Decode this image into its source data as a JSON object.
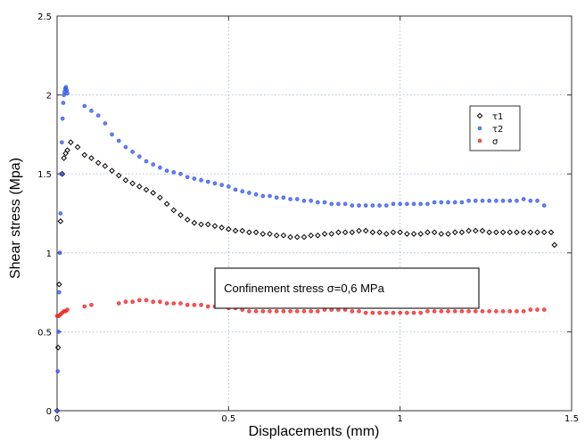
{
  "chart_data": {
    "type": "scatter",
    "xlabel": "Displacements (mm)",
    "ylabel": "Shear stress (Mpa)",
    "xlim": [
      0,
      1.5
    ],
    "ylim": [
      0,
      2.5
    ],
    "x_ticks": [
      "0",
      "0.5",
      "1",
      "1.5"
    ],
    "y_ticks": [
      "0",
      "0.5",
      "1",
      "1.5",
      "2",
      "2.5"
    ],
    "grid": true,
    "legend_position": "top-right",
    "annotation": "Confinement stress σ=0,6 MPa",
    "colors": {
      "tau1": "#000000",
      "tau2": "#3355ee",
      "sigma": "#ee2222"
    },
    "series": [
      {
        "name": "τ1",
        "marker": "diamond",
        "x": [
          0.0,
          0.003,
          0.006,
          0.01,
          0.015,
          0.02,
          0.025,
          0.03,
          0.04,
          0.06,
          0.08,
          0.1,
          0.12,
          0.14,
          0.16,
          0.18,
          0.2,
          0.22,
          0.24,
          0.26,
          0.28,
          0.3,
          0.32,
          0.34,
          0.36,
          0.38,
          0.4,
          0.42,
          0.44,
          0.46,
          0.48,
          0.5,
          0.52,
          0.54,
          0.56,
          0.58,
          0.6,
          0.62,
          0.64,
          0.66,
          0.68,
          0.7,
          0.72,
          0.74,
          0.76,
          0.78,
          0.8,
          0.82,
          0.84,
          0.86,
          0.88,
          0.9,
          0.92,
          0.94,
          0.96,
          0.98,
          1.0,
          1.02,
          1.04,
          1.06,
          1.08,
          1.1,
          1.12,
          1.14,
          1.16,
          1.18,
          1.2,
          1.22,
          1.24,
          1.26,
          1.28,
          1.3,
          1.32,
          1.34,
          1.36,
          1.38,
          1.4,
          1.42,
          1.44,
          1.45
        ],
        "y": [
          0.0,
          0.4,
          0.8,
          1.2,
          1.5,
          1.6,
          1.63,
          1.65,
          1.7,
          1.67,
          1.62,
          1.6,
          1.57,
          1.55,
          1.52,
          1.49,
          1.46,
          1.44,
          1.42,
          1.4,
          1.38,
          1.35,
          1.31,
          1.27,
          1.24,
          1.21,
          1.19,
          1.18,
          1.18,
          1.17,
          1.16,
          1.15,
          1.14,
          1.14,
          1.13,
          1.13,
          1.12,
          1.12,
          1.11,
          1.11,
          1.1,
          1.1,
          1.1,
          1.11,
          1.11,
          1.12,
          1.12,
          1.13,
          1.13,
          1.13,
          1.14,
          1.14,
          1.13,
          1.13,
          1.12,
          1.13,
          1.13,
          1.12,
          1.12,
          1.12,
          1.13,
          1.13,
          1.12,
          1.12,
          1.13,
          1.13,
          1.14,
          1.14,
          1.14,
          1.13,
          1.13,
          1.13,
          1.13,
          1.13,
          1.13,
          1.13,
          1.13,
          1.13,
          1.13,
          1.05
        ]
      },
      {
        "name": "τ2",
        "marker": "dot",
        "x": [
          0.0,
          0.002,
          0.004,
          0.006,
          0.008,
          0.01,
          0.012,
          0.014,
          0.016,
          0.018,
          0.02,
          0.022,
          0.024,
          0.026,
          0.028,
          0.03,
          0.08,
          0.1,
          0.12,
          0.14,
          0.16,
          0.18,
          0.2,
          0.22,
          0.24,
          0.26,
          0.28,
          0.3,
          0.32,
          0.34,
          0.36,
          0.38,
          0.4,
          0.42,
          0.44,
          0.46,
          0.48,
          0.5,
          0.52,
          0.54,
          0.56,
          0.58,
          0.6,
          0.62,
          0.64,
          0.66,
          0.68,
          0.7,
          0.72,
          0.74,
          0.76,
          0.78,
          0.8,
          0.82,
          0.84,
          0.86,
          0.88,
          0.9,
          0.92,
          0.94,
          0.96,
          0.98,
          1.0,
          1.02,
          1.04,
          1.06,
          1.08,
          1.1,
          1.12,
          1.14,
          1.16,
          1.18,
          1.2,
          1.22,
          1.24,
          1.26,
          1.28,
          1.3,
          1.32,
          1.34,
          1.36,
          1.38,
          1.4,
          1.42
        ],
        "y": [
          0.0,
          0.25,
          0.5,
          0.75,
          1.0,
          1.25,
          1.5,
          1.7,
          1.85,
          1.95,
          2.0,
          2.02,
          2.04,
          2.05,
          2.03,
          2.01,
          1.93,
          1.9,
          1.87,
          1.82,
          1.75,
          1.71,
          1.67,
          1.64,
          1.61,
          1.58,
          1.56,
          1.54,
          1.52,
          1.51,
          1.5,
          1.48,
          1.47,
          1.46,
          1.45,
          1.44,
          1.43,
          1.42,
          1.4,
          1.39,
          1.38,
          1.37,
          1.36,
          1.36,
          1.35,
          1.35,
          1.34,
          1.34,
          1.33,
          1.33,
          1.32,
          1.32,
          1.31,
          1.31,
          1.31,
          1.3,
          1.3,
          1.3,
          1.3,
          1.3,
          1.3,
          1.31,
          1.31,
          1.31,
          1.31,
          1.31,
          1.31,
          1.32,
          1.32,
          1.32,
          1.32,
          1.32,
          1.33,
          1.33,
          1.33,
          1.33,
          1.33,
          1.33,
          1.33,
          1.33,
          1.34,
          1.33,
          1.33,
          1.3
        ]
      },
      {
        "name": "σ",
        "marker": "dot",
        "x": [
          0.0,
          0.005,
          0.01,
          0.015,
          0.02,
          0.025,
          0.03,
          0.08,
          0.1,
          0.18,
          0.2,
          0.22,
          0.24,
          0.26,
          0.28,
          0.3,
          0.32,
          0.34,
          0.36,
          0.38,
          0.4,
          0.42,
          0.44,
          0.46,
          0.48,
          0.5,
          0.52,
          0.54,
          0.56,
          0.58,
          0.6,
          0.62,
          0.64,
          0.66,
          0.68,
          0.7,
          0.72,
          0.74,
          0.76,
          0.78,
          0.8,
          0.82,
          0.84,
          0.86,
          0.88,
          0.9,
          0.92,
          0.94,
          0.96,
          0.98,
          1.0,
          1.02,
          1.04,
          1.06,
          1.08,
          1.1,
          1.12,
          1.14,
          1.16,
          1.18,
          1.2,
          1.22,
          1.24,
          1.26,
          1.28,
          1.3,
          1.32,
          1.34,
          1.36,
          1.38,
          1.4,
          1.42
        ],
        "y": [
          0.6,
          0.6,
          0.61,
          0.62,
          0.63,
          0.63,
          0.64,
          0.66,
          0.67,
          0.68,
          0.69,
          0.69,
          0.7,
          0.7,
          0.69,
          0.69,
          0.68,
          0.68,
          0.68,
          0.67,
          0.67,
          0.67,
          0.66,
          0.66,
          0.66,
          0.65,
          0.65,
          0.64,
          0.63,
          0.63,
          0.63,
          0.63,
          0.63,
          0.63,
          0.63,
          0.63,
          0.63,
          0.63,
          0.63,
          0.64,
          0.64,
          0.64,
          0.64,
          0.63,
          0.63,
          0.62,
          0.62,
          0.62,
          0.62,
          0.62,
          0.62,
          0.62,
          0.62,
          0.62,
          0.63,
          0.63,
          0.63,
          0.63,
          0.63,
          0.63,
          0.63,
          0.63,
          0.63,
          0.63,
          0.63,
          0.63,
          0.63,
          0.63,
          0.63,
          0.64,
          0.64,
          0.64
        ]
      }
    ]
  }
}
